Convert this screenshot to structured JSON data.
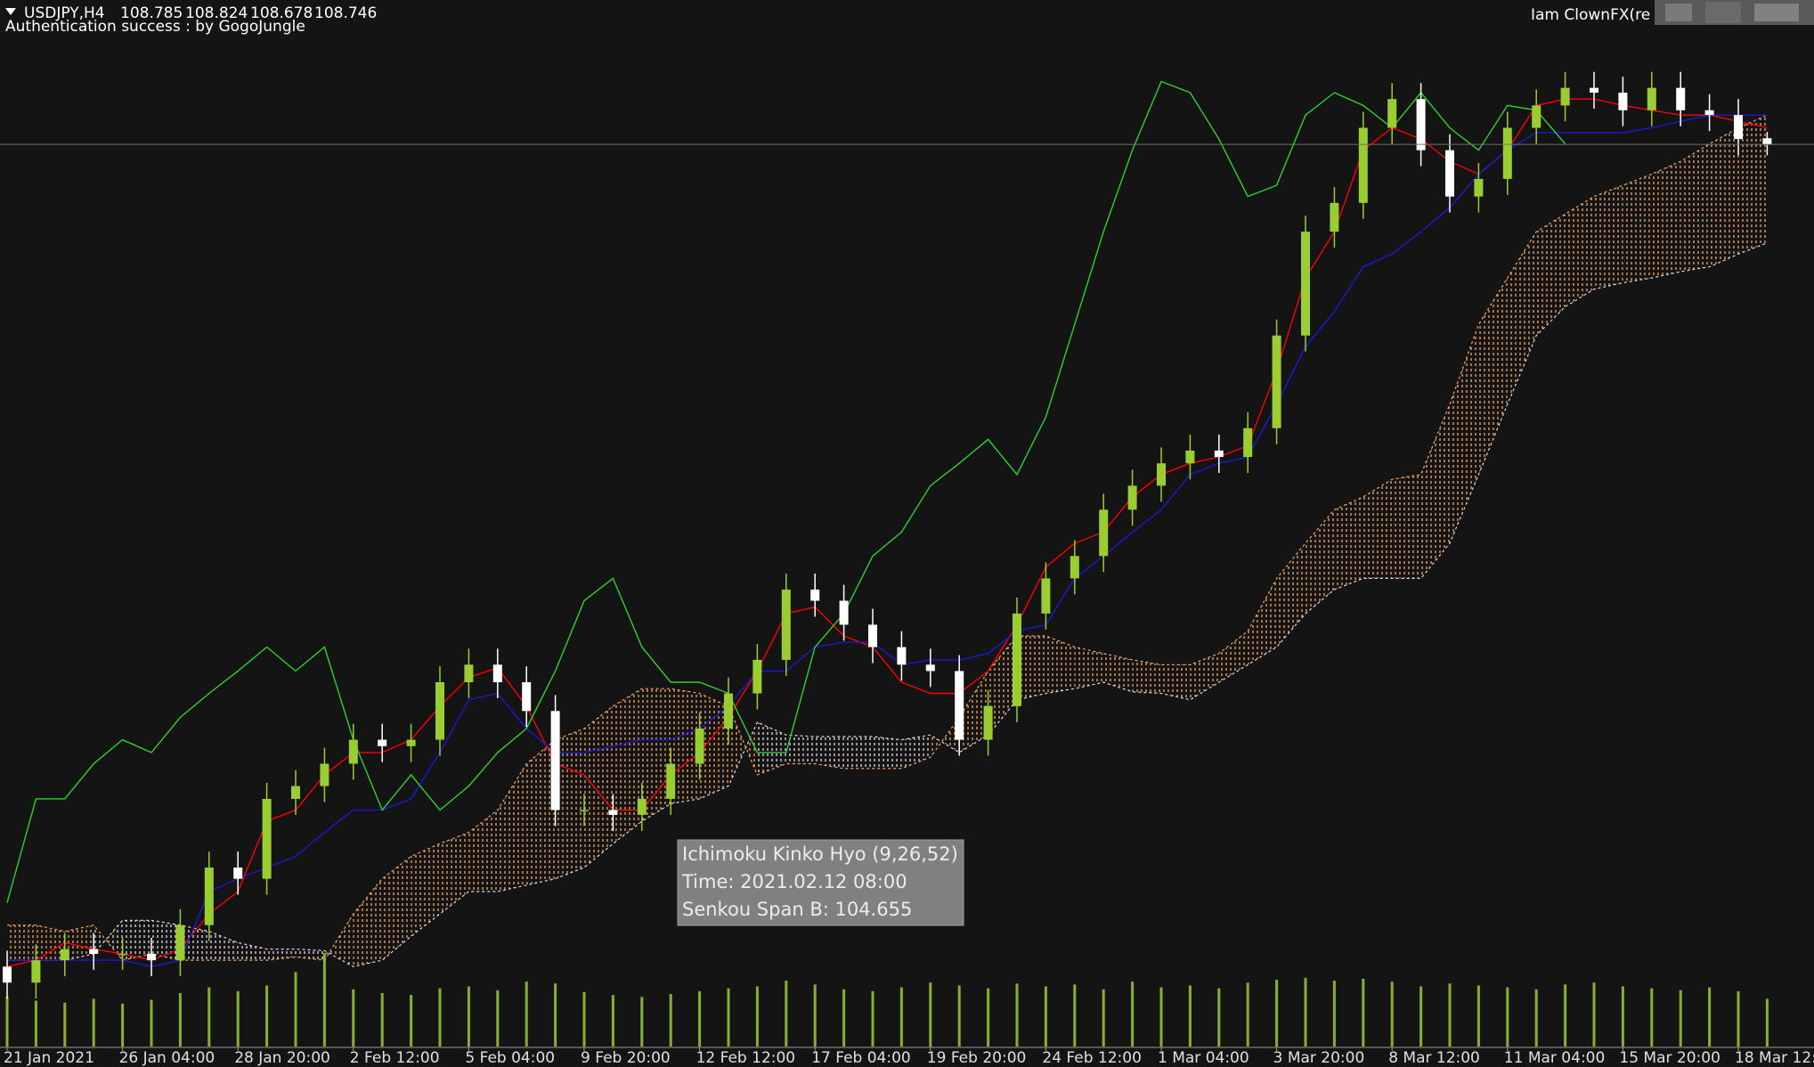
{
  "chart_data": {
    "type": "candlestick",
    "title": "USDJPY,H4",
    "categories": [
      "21 Jan 2021",
      null,
      null,
      null,
      "26 Jan 04:00",
      null,
      null,
      null,
      "28 Jan 20:00",
      null,
      null,
      null,
      "2 Feb 12:00",
      null,
      null,
      null,
      "5 Feb 04:00",
      null,
      null,
      null,
      "9 Feb 20:00",
      null,
      null,
      null,
      "12 Feb 12:00",
      null,
      null,
      null,
      "17 Feb 04:00",
      null,
      null,
      null,
      "19 Feb 20:00",
      null,
      null,
      null,
      "24 Feb 12:00",
      null,
      null,
      null,
      "1 Mar 04:00",
      null,
      null,
      null,
      "3 Mar 20:00",
      null,
      null,
      null,
      "8 Mar 12:00",
      null,
      null,
      null,
      "11 Mar 04:00",
      null,
      null,
      null,
      "15 Mar 20:00",
      null,
      null,
      null,
      "18 Mar 12:00",
      null
    ],
    "open": [
      103.6,
      103.5,
      103.64,
      103.71,
      103.68,
      103.68,
      103.64,
      103.86,
      104.22,
      104.15,
      104.65,
      104.73,
      104.87,
      105.02,
      104.98,
      105.02,
      105.38,
      105.49,
      105.38,
      105.2,
      104.58,
      104.58,
      104.55,
      104.65,
      104.87,
      105.09,
      105.31,
      105.52,
      105.96,
      105.89,
      105.74,
      105.6,
      105.49,
      105.45,
      105.02,
      105.23,
      105.81,
      106.03,
      106.17,
      106.46,
      106.61,
      106.75,
      106.83,
      106.79,
      106.97,
      107.55,
      108.2,
      108.38,
      108.85,
      109.03,
      108.71,
      108.42,
      108.53,
      108.85,
      108.99,
      109.1,
      109.07,
      108.96,
      109.1,
      108.96,
      108.93,
      108.785
    ],
    "high": [
      103.7,
      103.74,
      103.81,
      103.81,
      103.78,
      103.78,
      103.96,
      104.32,
      104.32,
      104.75,
      104.83,
      104.97,
      105.12,
      105.12,
      105.12,
      105.48,
      105.59,
      105.59,
      105.48,
      105.3,
      104.68,
      104.68,
      104.75,
      104.97,
      105.19,
      105.41,
      105.62,
      106.06,
      106.06,
      105.99,
      105.84,
      105.7,
      105.59,
      105.55,
      105.33,
      105.91,
      106.13,
      106.27,
      106.56,
      106.71,
      106.85,
      106.93,
      106.93,
      107.07,
      107.65,
      108.3,
      108.48,
      108.95,
      109.13,
      109.13,
      108.81,
      108.63,
      108.95,
      109.09,
      109.2,
      109.2,
      109.17,
      109.2,
      109.2,
      109.06,
      109.03,
      108.824
    ],
    "low": [
      103.4,
      103.4,
      103.54,
      103.58,
      103.58,
      103.54,
      103.54,
      103.76,
      104.05,
      104.05,
      104.55,
      104.63,
      104.77,
      104.88,
      104.88,
      104.92,
      105.28,
      105.28,
      105.1,
      104.48,
      104.48,
      104.45,
      104.45,
      104.55,
      104.77,
      104.99,
      105.21,
      105.42,
      105.79,
      105.64,
      105.5,
      105.39,
      105.35,
      104.92,
      104.92,
      105.13,
      105.71,
      105.93,
      106.07,
      106.36,
      106.51,
      106.65,
      106.69,
      106.69,
      106.87,
      107.45,
      108.1,
      108.28,
      108.75,
      108.61,
      108.32,
      108.32,
      108.43,
      108.75,
      108.89,
      108.97,
      108.86,
      108.86,
      108.86,
      108.83,
      108.68,
      108.678
    ],
    "close": [
      103.5,
      103.64,
      103.71,
      103.68,
      103.68,
      103.64,
      103.86,
      104.22,
      104.15,
      104.65,
      104.73,
      104.87,
      105.02,
      104.98,
      105.02,
      105.38,
      105.49,
      105.38,
      105.2,
      104.58,
      104.58,
      104.55,
      104.65,
      104.87,
      105.09,
      105.31,
      105.52,
      105.96,
      105.89,
      105.74,
      105.6,
      105.49,
      105.45,
      105.02,
      105.23,
      105.81,
      106.03,
      106.17,
      106.46,
      106.61,
      106.75,
      106.83,
      106.79,
      106.97,
      107.55,
      108.2,
      108.38,
      108.85,
      109.03,
      108.71,
      108.42,
      108.53,
      108.85,
      108.99,
      109.1,
      109.07,
      108.96,
      109.1,
      108.96,
      108.93,
      108.78,
      108.746
    ],
    "up_color": "#9acd32",
    "down_color": "#ffffff",
    "ylim": [
      103.1,
      109.65
    ],
    "series": [
      {
        "color": "#ff0000",
        "values": [
          103.6,
          103.64,
          103.75,
          103.71,
          103.68,
          103.64,
          103.71,
          103.93,
          104.07,
          104.51,
          104.58,
          104.8,
          104.94,
          104.94,
          105.02,
          105.23,
          105.41,
          105.47,
          105.23,
          104.87,
          104.8,
          104.58,
          104.58,
          104.8,
          104.94,
          105.16,
          105.45,
          105.81,
          105.85,
          105.67,
          105.6,
          105.38,
          105.31,
          105.31,
          105.45,
          105.74,
          106.1,
          106.25,
          106.32,
          106.54,
          106.68,
          106.75,
          106.79,
          106.86,
          107.33,
          107.91,
          108.2,
          108.71,
          108.85,
          108.78,
          108.64,
          108.56,
          108.71,
          108.99,
          109.03,
          109.03,
          108.99,
          108.96,
          108.93,
          108.93,
          108.89,
          108.85
        ]
      },
      {
        "color": "#1a1ad6",
        "values": [
          103.64,
          103.64,
          103.64,
          103.64,
          103.64,
          103.6,
          103.64,
          104.07,
          104.15,
          104.22,
          104.29,
          104.44,
          104.58,
          104.58,
          104.65,
          104.94,
          105.27,
          105.31,
          105.09,
          104.94,
          104.94,
          104.98,
          105.02,
          105.02,
          105.09,
          105.23,
          105.45,
          105.45,
          105.6,
          105.63,
          105.63,
          105.49,
          105.52,
          105.52,
          105.56,
          105.7,
          105.74,
          106.03,
          106.17,
          106.32,
          106.46,
          106.68,
          106.75,
          106.79,
          107.12,
          107.48,
          107.7,
          107.98,
          108.06,
          108.2,
          108.35,
          108.56,
          108.71,
          108.82,
          108.82,
          108.82,
          108.82,
          108.85,
          108.89,
          108.93,
          108.93,
          108.93
        ]
      },
      {
        "color": "#2fd02f",
        "values": [
          104.0,
          104.65,
          104.65,
          104.87,
          105.02,
          104.94,
          105.16,
          105.31,
          105.45,
          105.6,
          105.45,
          105.6,
          105.02,
          104.58,
          104.8,
          104.58,
          104.73,
          104.94,
          105.09,
          105.45,
          105.89,
          106.03,
          105.6,
          105.38,
          105.38,
          105.31,
          104.94,
          104.94,
          105.6,
          105.81,
          106.17,
          106.32,
          106.61,
          106.75,
          106.9,
          106.68,
          107.04,
          107.62,
          108.2,
          108.71,
          109.14,
          109.07,
          108.78,
          108.42,
          108.49,
          108.93,
          109.07,
          108.99,
          108.85,
          109.07,
          108.85,
          108.71,
          108.99,
          108.96,
          108.75,
          null,
          null,
          null,
          null,
          null,
          null,
          null
        ]
      }
    ],
    "cloud": {
      "span_a": {
        "color": "#f4a460",
        "values": [
          103.86,
          103.86,
          103.82,
          103.86,
          103.64,
          103.68,
          103.64,
          103.64,
          103.64,
          103.64,
          103.66,
          103.64,
          103.93,
          104.15,
          104.29,
          104.37,
          104.44,
          104.58,
          104.87,
          105.02,
          105.09,
          105.23,
          105.34,
          105.34,
          105.31,
          105.23,
          104.8,
          104.87,
          104.87,
          104.84,
          104.84,
          104.84,
          104.91,
          105.16,
          105.45,
          105.67,
          105.67,
          105.6,
          105.56,
          105.52,
          105.49,
          105.49,
          105.56,
          105.7,
          106.03,
          106.25,
          106.46,
          106.54,
          106.65,
          106.68,
          107.12,
          107.62,
          107.91,
          108.2,
          108.31,
          108.42,
          108.49,
          108.56,
          108.64,
          108.75,
          108.85,
          108.93
        ]
      },
      "span_b": {
        "color": "#e6d8e6",
        "values": [
          103.64,
          103.64,
          103.64,
          103.68,
          103.89,
          103.89,
          103.86,
          103.82,
          103.75,
          103.71,
          103.71,
          103.7,
          103.6,
          103.64,
          103.79,
          103.93,
          104.07,
          104.07,
          104.11,
          104.15,
          104.22,
          104.37,
          104.51,
          104.62,
          104.65,
          104.73,
          105.13,
          105.05,
          105.04,
          105.04,
          105.04,
          105.02,
          105.05,
          104.94,
          105.05,
          105.27,
          105.31,
          105.34,
          105.38,
          105.32,
          105.31,
          105.27,
          105.38,
          105.49,
          105.6,
          105.81,
          105.96,
          106.03,
          106.03,
          106.03,
          106.25,
          106.68,
          107.12,
          107.55,
          107.73,
          107.84,
          107.88,
          107.91,
          107.95,
          107.98,
          108.06,
          108.13
        ]
      }
    },
    "volume": [
      5200,
      4800,
      4600,
      5000,
      4500,
      4900,
      5600,
      6200,
      5800,
      6400,
      7800,
      9800,
      6000,
      5600,
      5400,
      6100,
      6300,
      5900,
      6800,
      6600,
      5700,
      5400,
      5200,
      5500,
      5800,
      6100,
      6300,
      6900,
      6500,
      6000,
      5800,
      6200,
      6700,
      6400,
      6100,
      6600,
      6300,
      6500,
      6000,
      6800,
      6200,
      6400,
      6100,
      6700,
      7000,
      7200,
      6900,
      7100,
      6800,
      6300,
      6600,
      6400,
      6200,
      6000,
      6500,
      6700,
      6300,
      6100,
      5900,
      6200,
      5800,
      5000
    ],
    "volume_ylim": [
      0,
      14000
    ],
    "volume_color": "#9acd32"
  },
  "header": {
    "account": "Iam ClownFX(re",
    "status": "Authentication success : by GogoJungle"
  },
  "tooltip": [
    "Ichimoku Kinko Hyo (9,26,52)",
    "Time: 2021.02.12 08:00",
    "Senkou Span B: 104.655"
  ]
}
